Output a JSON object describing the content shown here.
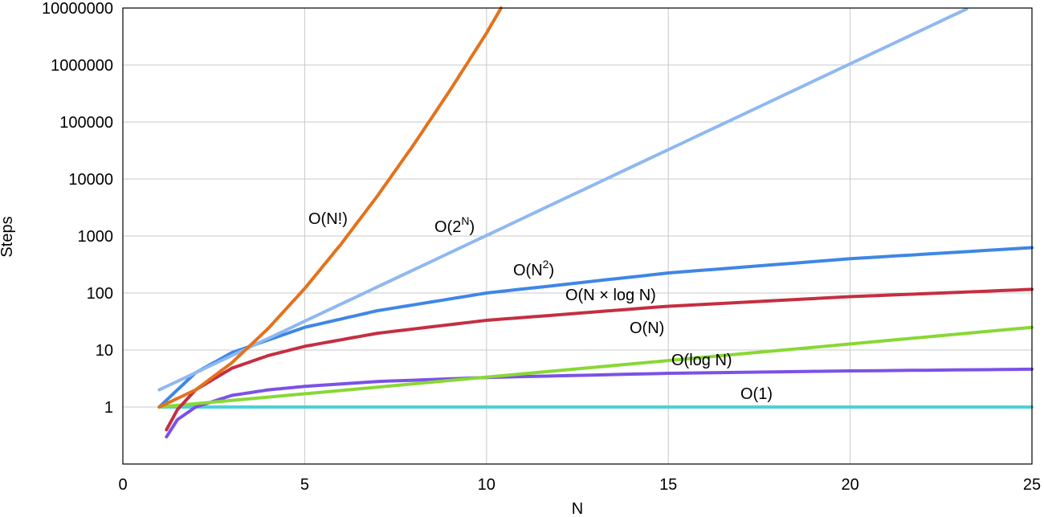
{
  "chart_data": {
    "type": "line",
    "xlabel": "N",
    "ylabel": "Steps",
    "xlim": [
      0,
      25
    ],
    "ylim_log10": [
      -1,
      7
    ],
    "y_scale": "log",
    "grid": true,
    "x_ticks": [
      "0",
      "5",
      "10",
      "15",
      "20",
      "25"
    ],
    "y_ticks": [
      "1",
      "10",
      "100",
      "1000",
      "10000",
      "100000",
      "1000000",
      "10000000"
    ],
    "series": [
      {
        "name": "O(1)",
        "color": "#4dd0d8",
        "x": [
          1,
          25
        ],
        "y": [
          1,
          1
        ]
      },
      {
        "name": "O(log N)",
        "color": "#7b52e6",
        "x": [
          1.2,
          1.5,
          2,
          3,
          4,
          5,
          7,
          10,
          15,
          20,
          25
        ],
        "y": [
          0.3,
          0.6,
          1.0,
          1.6,
          2.0,
          2.3,
          2.8,
          3.3,
          3.9,
          4.3,
          4.6
        ]
      },
      {
        "name": "O(N)",
        "color": "#88d835",
        "x": [
          1,
          25
        ],
        "y": [
          1,
          25
        ]
      },
      {
        "name": "O(N × log N)",
        "color": "#c42f41",
        "x": [
          1.2,
          1.5,
          2,
          3,
          4,
          5,
          7,
          10,
          15,
          20,
          25
        ],
        "y": [
          0.4,
          0.9,
          2,
          4.8,
          8,
          11.6,
          19.7,
          33.2,
          58.6,
          86.4,
          116
        ]
      },
      {
        "name": "O(N^2)",
        "color": "#3f86e6",
        "x": [
          1,
          2,
          3,
          5,
          7,
          10,
          15,
          20,
          25
        ],
        "y": [
          1,
          4,
          9,
          25,
          49,
          100,
          225,
          400,
          625
        ]
      },
      {
        "name": "O(2^N)",
        "color": "#8fb8f0",
        "x": [
          1,
          5,
          10,
          15,
          20,
          23.2
        ],
        "y": [
          2,
          32,
          1024,
          32768,
          1048576,
          9600000
        ]
      },
      {
        "name": "O(N!)",
        "color": "#e3721c",
        "x": [
          1,
          2,
          3,
          4,
          5,
          6,
          7,
          8,
          9,
          10,
          10.4
        ],
        "y": [
          1,
          2,
          6,
          24,
          120,
          720,
          5040,
          40320,
          362880,
          3628800,
          10000000
        ]
      }
    ]
  },
  "labels": {
    "o1": "O(1)",
    "olog": "O(log N)",
    "on": "O(N)",
    "onlog_prefix": "O(N ",
    "onlog_times": "×",
    "onlog_suffix": " log N)",
    "on2_base": "O(N",
    "on2_exp": "2",
    "on2_close": ")",
    "o2n_base": "O(2",
    "o2n_exp": "N",
    "o2n_close": ")",
    "onfact": "O(N!)"
  }
}
